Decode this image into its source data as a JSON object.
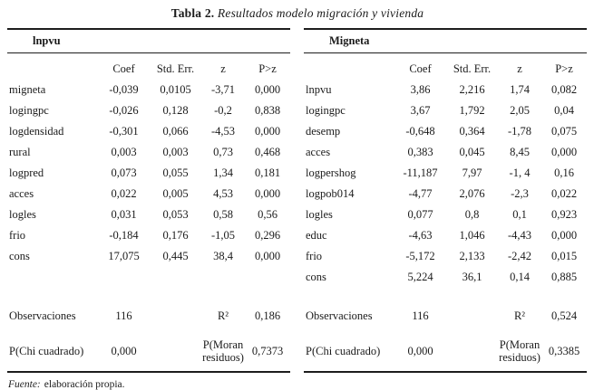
{
  "title": {
    "bold": "Tabla 2.",
    "italic": " Resultados modelo migración y vivienda"
  },
  "footer": {
    "source_label": "Fuente:",
    "source_text": "elaboración propia."
  },
  "panels": [
    {
      "name": "lnpvu",
      "columns": [
        "Coef",
        "Std. Err.",
        "z",
        "P>z"
      ],
      "rows": [
        [
          "migneta",
          "-0,039",
          "0,0105",
          "-3,71",
          "0,000"
        ],
        [
          "logingpc",
          "-0,026",
          "0,128",
          "-0,2",
          "0,838"
        ],
        [
          "logdensidad",
          "-0,301",
          "0,066",
          "-4,53",
          "0,000"
        ],
        [
          "rural",
          "0,003",
          "0,003",
          "0,73",
          "0,468"
        ],
        [
          "logpred",
          "0,073",
          "0,055",
          "1,34",
          "0,181"
        ],
        [
          "acces",
          "0,022",
          "0,005",
          "4,53",
          "0,000"
        ],
        [
          "logles",
          "0,031",
          "0,053",
          "0,58",
          "0,56"
        ],
        [
          "frio",
          "-0,184",
          "0,176",
          "-1,05",
          "0,296"
        ],
        [
          "cons",
          "17,075",
          "0,445",
          "38,4",
          "0,000"
        ]
      ],
      "stats": {
        "obs_label": "Observaciones",
        "obs_value": "116",
        "r2_label": "R²",
        "r2_value": "0,186",
        "chi_label": "P(Chi cuadrado)",
        "chi_value": "0,000",
        "moran_label": "P(Moran residuos)",
        "moran_value": "0,7373"
      }
    },
    {
      "name": "Migneta",
      "columns": [
        "Coef",
        "Std. Err.",
        "z",
        "P>z"
      ],
      "rows": [
        [
          "lnpvu",
          "3,86",
          "2,216",
          "1,74",
          "0,082"
        ],
        [
          "logingpc",
          "3,67",
          "1,792",
          "2,05",
          "0,04"
        ],
        [
          "desemp",
          "-0,648",
          "0,364",
          "-1,78",
          "0,075"
        ],
        [
          "acces",
          "0,383",
          "0,045",
          "8,45",
          "0,000"
        ],
        [
          "logpershog",
          "-11,187",
          "7,97",
          "-1, 4",
          "0,16"
        ],
        [
          "logpob014",
          "-4,77",
          "2,076",
          "-2,3",
          "0,022"
        ],
        [
          "logles",
          "0,077",
          "0,8",
          "0,1",
          "0,923"
        ],
        [
          "educ",
          "-4,63",
          "1,046",
          "-4,43",
          "0,000"
        ],
        [
          "frio",
          "-5,172",
          "2,133",
          "-2,42",
          "0,015"
        ],
        [
          "cons",
          "5,224",
          "36,1",
          "0,14",
          "0,885"
        ]
      ],
      "stats": {
        "obs_label": "Observaciones",
        "obs_value": "116",
        "r2_label": "R²",
        "r2_value": "0,524",
        "chi_label": "P(Chi cuadrado)",
        "chi_value": "0,000",
        "moran_label": "P(Moran residuos)",
        "moran_value": "0,3385"
      }
    }
  ]
}
